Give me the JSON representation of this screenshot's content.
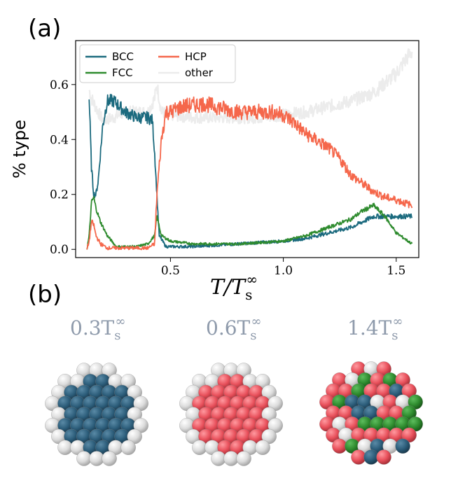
{
  "panel_labels": {
    "a": "(a)",
    "b": "(b)"
  },
  "chart_data": {
    "type": "line",
    "xlabel": "T/T_s^∞",
    "xlabel_parts": {
      "main": "T/T",
      "sub": "s",
      "sup": "∞"
    },
    "ylabel": "% type",
    "xlim": [
      0.08,
      1.6
    ],
    "ylim": [
      -0.03,
      0.76
    ],
    "xticks": [
      0.5,
      1.0,
      1.5
    ],
    "xtick_labels": [
      "0.5",
      "1.0",
      "1.5"
    ],
    "yticks": [
      0.0,
      0.2,
      0.4,
      0.6
    ],
    "ytick_labels": [
      "0.0",
      "0.2",
      "0.4",
      "0.6"
    ],
    "grid": false,
    "legend_placement": "top-left",
    "series": [
      {
        "name": "BCC",
        "color": "#1b6a7e",
        "x": [
          0.14,
          0.15,
          0.16,
          0.17,
          0.18,
          0.2,
          0.22,
          0.25,
          0.3,
          0.35,
          0.4,
          0.42,
          0.43,
          0.45,
          0.48,
          0.5,
          0.6,
          0.8,
          1.0,
          1.1,
          1.2,
          1.3,
          1.4,
          1.5,
          1.57
        ],
        "y": [
          0.55,
          0.3,
          0.2,
          0.2,
          0.25,
          0.45,
          0.54,
          0.54,
          0.5,
          0.48,
          0.48,
          0.47,
          0.35,
          0.05,
          0.01,
          0.01,
          0.01,
          0.02,
          0.03,
          0.04,
          0.06,
          0.08,
          0.12,
          0.12,
          0.12
        ]
      },
      {
        "name": "FCC",
        "color": "#2e8b2e",
        "x": [
          0.13,
          0.14,
          0.15,
          0.16,
          0.17,
          0.19,
          0.22,
          0.26,
          0.28,
          0.3,
          0.35,
          0.4,
          0.43,
          0.44,
          0.46,
          0.5,
          0.6,
          0.8,
          1.0,
          1.1,
          1.2,
          1.3,
          1.35,
          1.4,
          1.45,
          1.5,
          1.57
        ],
        "y": [
          0.0,
          0.05,
          0.17,
          0.19,
          0.15,
          0.1,
          0.05,
          0.01,
          0.01,
          0.01,
          0.01,
          0.02,
          0.05,
          0.12,
          0.05,
          0.03,
          0.02,
          0.02,
          0.03,
          0.05,
          0.08,
          0.11,
          0.14,
          0.16,
          0.12,
          0.06,
          0.02
        ]
      },
      {
        "name": "HCP",
        "color": "#f5674b",
        "x": [
          0.13,
          0.14,
          0.15,
          0.16,
          0.17,
          0.19,
          0.22,
          0.3,
          0.4,
          0.43,
          0.44,
          0.46,
          0.48,
          0.5,
          0.55,
          0.65,
          0.8,
          0.95,
          1.0,
          1.05,
          1.1,
          1.2,
          1.25,
          1.3,
          1.35,
          1.4,
          1.45,
          1.5,
          1.57
        ],
        "y": [
          0.0,
          0.03,
          0.1,
          0.09,
          0.05,
          0.02,
          0.005,
          0.005,
          0.005,
          0.02,
          0.2,
          0.4,
          0.5,
          0.5,
          0.52,
          0.53,
          0.5,
          0.5,
          0.49,
          0.46,
          0.42,
          0.37,
          0.33,
          0.27,
          0.24,
          0.21,
          0.19,
          0.18,
          0.16
        ]
      },
      {
        "name": "other",
        "color": "#ececec",
        "x": [
          0.14,
          0.15,
          0.18,
          0.2,
          0.25,
          0.3,
          0.4,
          0.43,
          0.44,
          0.46,
          0.5,
          0.6,
          0.7,
          0.8,
          0.9,
          1.0,
          1.1,
          1.2,
          1.3,
          1.4,
          1.5,
          1.55,
          1.57
        ],
        "y": [
          0.58,
          0.55,
          0.5,
          0.47,
          0.48,
          0.5,
          0.5,
          0.55,
          0.6,
          0.5,
          0.49,
          0.48,
          0.48,
          0.48,
          0.48,
          0.49,
          0.5,
          0.52,
          0.54,
          0.57,
          0.64,
          0.7,
          0.72
        ]
      }
    ]
  },
  "snapshots": [
    {
      "title_main": "0.3T",
      "title_sub": "s",
      "title_sup": "∞",
      "core_color": "#2c5d7a",
      "shell_color": "#e6e6e6"
    },
    {
      "title_main": "0.6T",
      "title_sub": "s",
      "title_sup": "∞",
      "core_color": "#e8505b",
      "shell_color": "#e6e6e6"
    },
    {
      "title_main": "1.4T",
      "title_sub": "s",
      "title_sup": "∞",
      "core_colors": [
        "#e8505b",
        "#2e8b2e",
        "#2c5d7a",
        "#e6e6e6"
      ],
      "shell_color": "#e6e6e6"
    }
  ]
}
